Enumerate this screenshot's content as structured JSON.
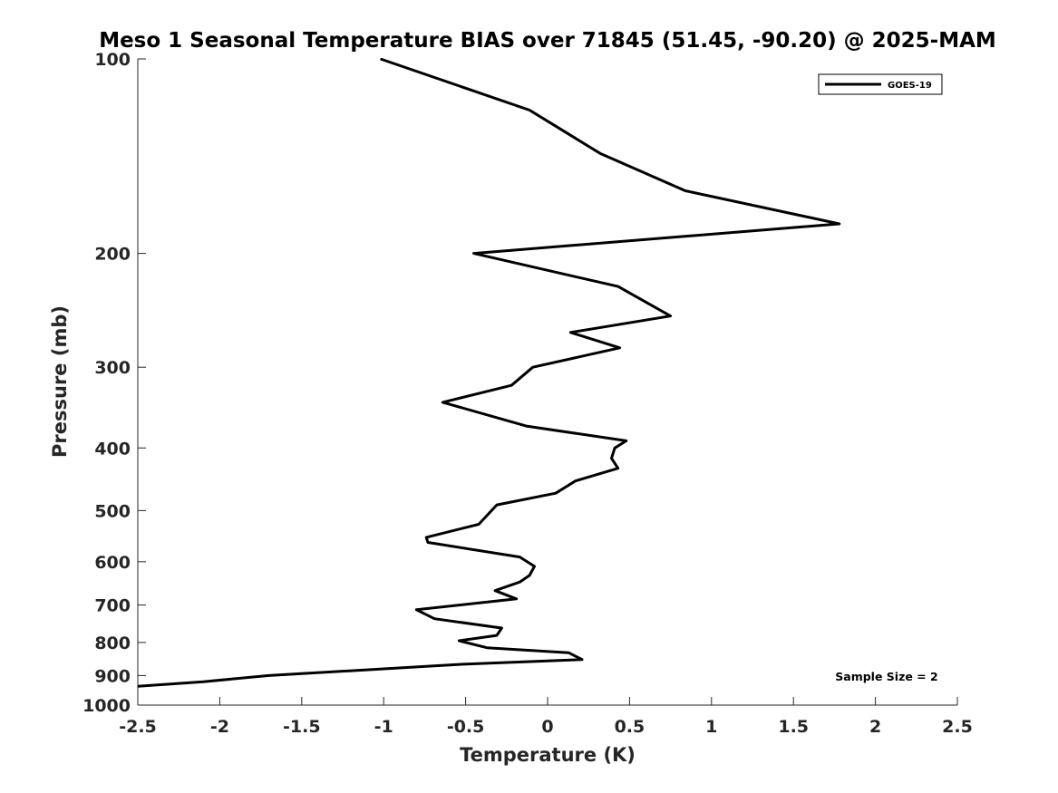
{
  "chart_data": {
    "type": "line",
    "title": "Meso 1 Seasonal Temperature BIAS over 71845 (51.45, -90.20) @ 2025-MAM",
    "xlabel": "Temperature (K)",
    "ylabel": "Pressure (mb)",
    "xlim": [
      -2.5,
      2.5
    ],
    "ylim": [
      100,
      1000
    ],
    "y_scale": "log",
    "y_reversed": true,
    "xticks": [
      "-2.5",
      "-2",
      "-1.5",
      "-1",
      "-0.5",
      "0",
      "0.5",
      "1",
      "1.5",
      "2",
      "2.5"
    ],
    "xtick_values": [
      -2.5,
      -2,
      -1.5,
      -1,
      -0.5,
      0,
      0.5,
      1,
      1.5,
      2,
      2.5
    ],
    "yticks": [
      "100",
      "200",
      "300",
      "400",
      "500",
      "600",
      "700",
      "800",
      "900",
      "1000"
    ],
    "ytick_values": [
      100,
      200,
      300,
      400,
      500,
      600,
      700,
      800,
      900,
      1000
    ],
    "grid": false,
    "legend_position": "top-right",
    "annotation": "Sample Size = 2",
    "series": [
      {
        "name": "GOES-19",
        "color": "#000000",
        "points": [
          {
            "t": -1.02,
            "p": 100
          },
          {
            "t": -0.11,
            "p": 120
          },
          {
            "t": 0.32,
            "p": 140
          },
          {
            "t": 0.84,
            "p": 160
          },
          {
            "t": 1.78,
            "p": 180
          },
          {
            "t": -0.45,
            "p": 200
          },
          {
            "t": 0.43,
            "p": 225
          },
          {
            "t": 0.75,
            "p": 250
          },
          {
            "t": 0.14,
            "p": 265
          },
          {
            "t": 0.44,
            "p": 280
          },
          {
            "t": -0.09,
            "p": 300
          },
          {
            "t": -0.22,
            "p": 320
          },
          {
            "t": -0.64,
            "p": 340
          },
          {
            "t": -0.13,
            "p": 370
          },
          {
            "t": 0.48,
            "p": 390
          },
          {
            "t": 0.41,
            "p": 400
          },
          {
            "t": 0.39,
            "p": 415
          },
          {
            "t": 0.43,
            "p": 430
          },
          {
            "t": 0.17,
            "p": 450
          },
          {
            "t": 0.05,
            "p": 470
          },
          {
            "t": -0.31,
            "p": 490
          },
          {
            "t": -0.42,
            "p": 525
          },
          {
            "t": -0.74,
            "p": 550
          },
          {
            "t": -0.73,
            "p": 560
          },
          {
            "t": -0.17,
            "p": 590
          },
          {
            "t": -0.08,
            "p": 610
          },
          {
            "t": -0.11,
            "p": 630
          },
          {
            "t": -0.17,
            "p": 645
          },
          {
            "t": -0.32,
            "p": 665
          },
          {
            "t": -0.19,
            "p": 685
          },
          {
            "t": -0.8,
            "p": 712
          },
          {
            "t": -0.69,
            "p": 735
          },
          {
            "t": -0.28,
            "p": 760
          },
          {
            "t": -0.31,
            "p": 780
          },
          {
            "t": -0.54,
            "p": 795
          },
          {
            "t": -0.37,
            "p": 815
          },
          {
            "t": 0.13,
            "p": 830
          },
          {
            "t": 0.21,
            "p": 850
          },
          {
            "t": -0.54,
            "p": 865
          },
          {
            "t": -1.7,
            "p": 900
          },
          {
            "t": -2.1,
            "p": 920
          },
          {
            "t": -2.5,
            "p": 935
          }
        ]
      }
    ]
  }
}
